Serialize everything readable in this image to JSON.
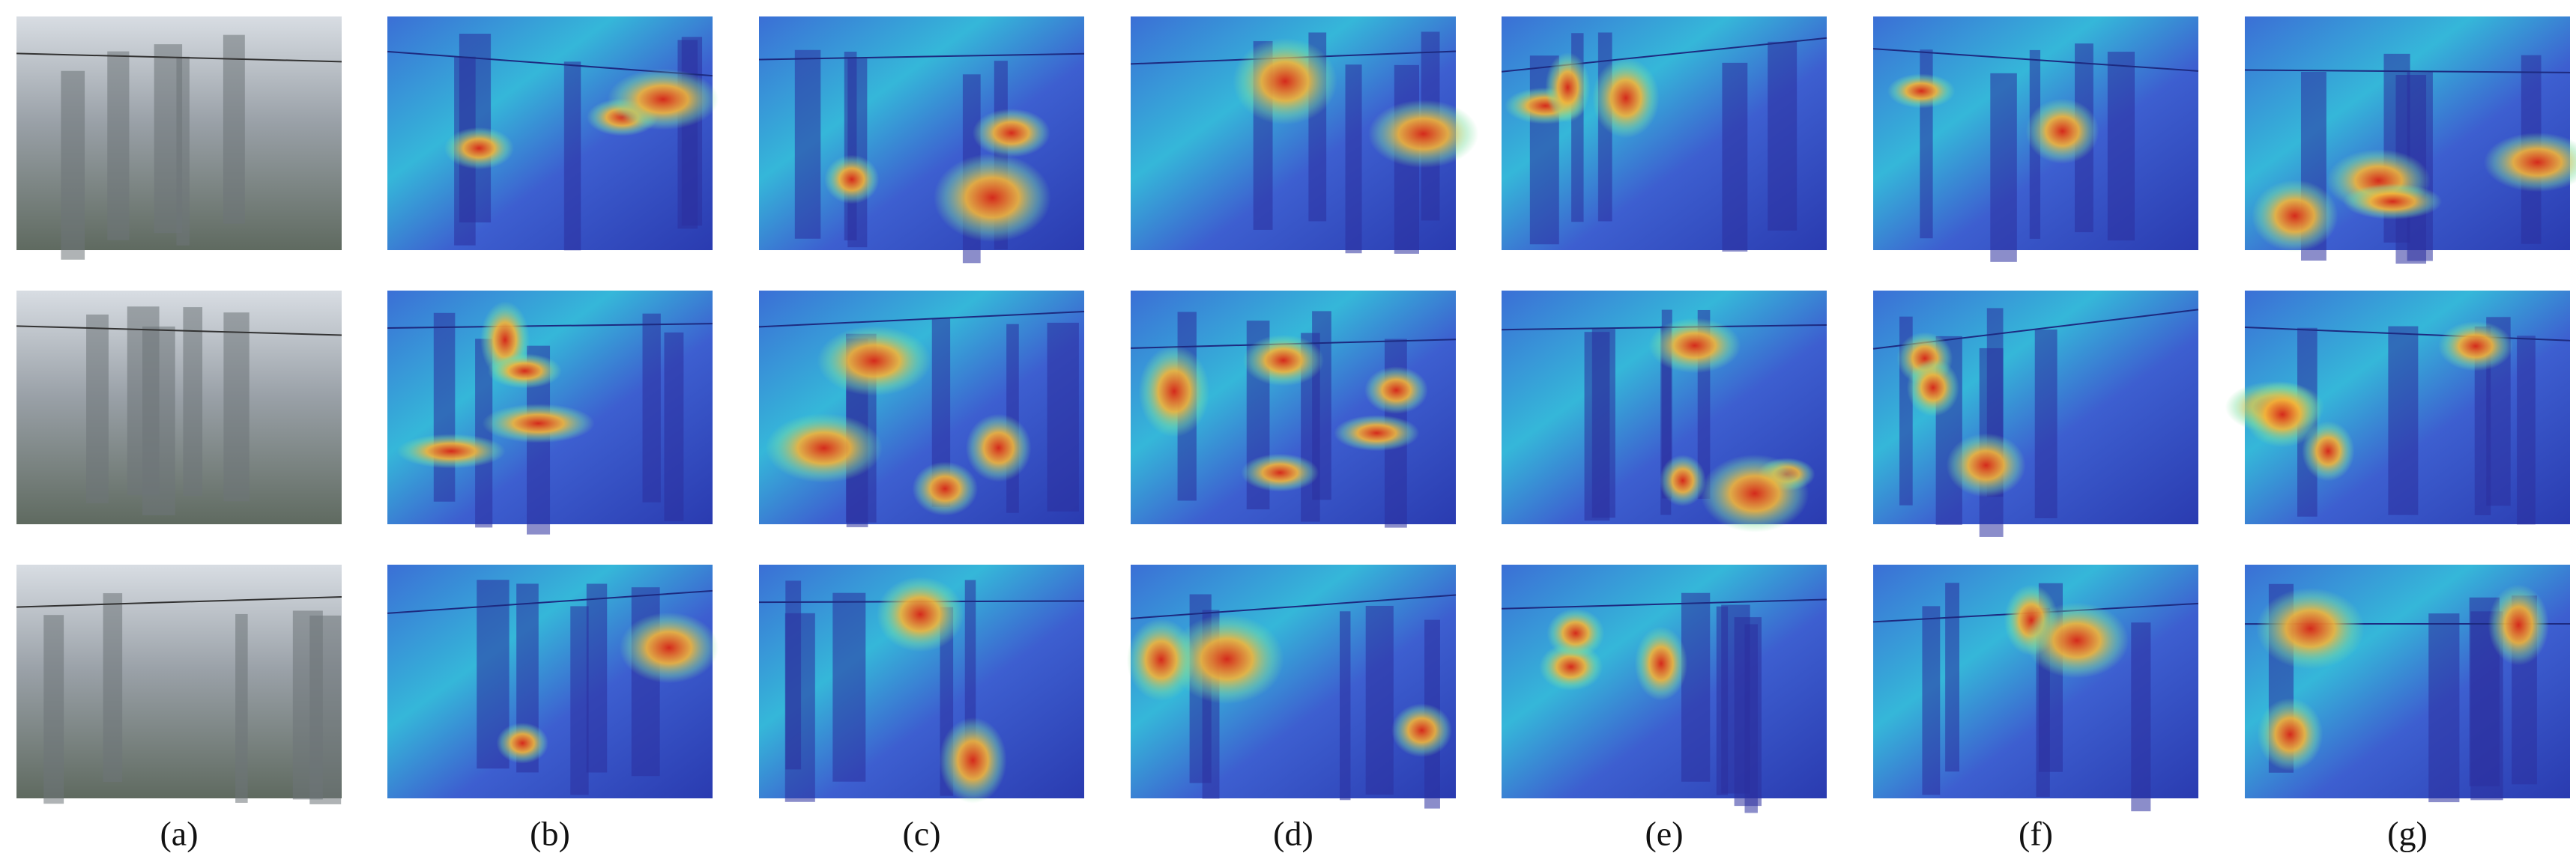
{
  "figure": {
    "labels": [
      "(a)",
      "(b)",
      "(c)",
      "(d)",
      "(e)",
      "(f)",
      "(g)"
    ]
  }
}
